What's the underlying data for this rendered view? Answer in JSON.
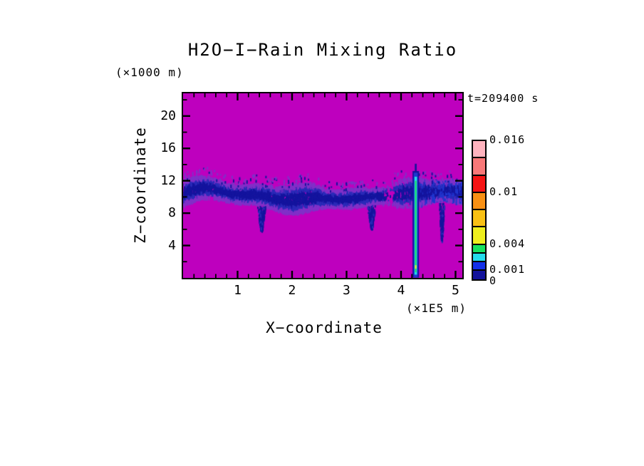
{
  "chart_data": {
    "type": "heatmap",
    "title": "H2O−I−Rain Mixing Ratio",
    "time_annotation": "t=209400 s",
    "x_axis": {
      "label": "X−coordinate",
      "unit_label": "(×1E5 m)",
      "min": 0,
      "max": 5.125,
      "major_ticks": [
        1,
        2,
        3,
        4,
        5
      ],
      "minor_tick_step": 0.2,
      "grid": false
    },
    "z_axis": {
      "label": "Z−coordinate",
      "unit_label": "(×1000 m)",
      "min": 0,
      "max": 22.8,
      "major_ticks": [
        4,
        8,
        12,
        16,
        20
      ],
      "minor_tick_step": 2,
      "grid": false
    },
    "colorbar": {
      "min": 0,
      "max": 0.016,
      "tick_labels": [
        {
          "value": 0.016,
          "text": "0.016"
        },
        {
          "value": 0.01,
          "text": "0.01"
        },
        {
          "value": 0.004,
          "text": "0.004"
        },
        {
          "value": 0.001,
          "text": "0.001"
        },
        {
          "value": 0,
          "text": "0"
        }
      ],
      "segments": [
        {
          "from": 0.014,
          "to": 0.016,
          "color": "#FFB3BE"
        },
        {
          "from": 0.012,
          "to": 0.014,
          "color": "#F87878"
        },
        {
          "from": 0.01,
          "to": 0.012,
          "color": "#F51414"
        },
        {
          "from": 0.008,
          "to": 0.01,
          "color": "#F89014"
        },
        {
          "from": 0.006,
          "to": 0.008,
          "color": "#F8C014"
        },
        {
          "from": 0.004,
          "to": 0.006,
          "color": "#EEEE1E"
        },
        {
          "from": 0.003,
          "to": 0.004,
          "color": "#17E25F"
        },
        {
          "from": 0.002,
          "to": 0.003,
          "color": "#24DCEC"
        },
        {
          "from": 0.001,
          "to": 0.002,
          "color": "#1430E8"
        },
        {
          "from": 0.0,
          "to": 0.001,
          "color": "#12129B"
        }
      ]
    },
    "field": {
      "description": "Magenta background (rain mixing ratio ~0) with a speckled dark-blue rain band between z~8 and z~12.5 (x1000 m) spanning all x, and one narrow intense rain shaft near x~4.27 (x1E5 m) reaching the surface with green/cyan core values in the 0.002-0.006 range",
      "background_color": "#BE00BE",
      "band": {
        "seed": 1337,
        "z_center": 10.15,
        "half_width": 1.35,
        "speckles": 8000,
        "stray_dots": 260,
        "dense_from": 4.35,
        "colors": {
          "fringe": "#8030C8",
          "mid": "#2A2AB8",
          "core": "#14149E",
          "bright": "#2036D0"
        },
        "gaps": [
          {
            "x": 0.5,
            "depth": 0.45,
            "sigma": 0.1
          },
          {
            "x": 2.2,
            "depth": 0.3,
            "sigma": 0.12
          },
          {
            "x": 3.78,
            "depth": 0.9,
            "sigma": 0.13
          },
          {
            "x": 4.12,
            "depth": 0.6,
            "sigma": 0.06
          }
        ],
        "wisps": [
          {
            "x": 1.43,
            "z_bottom": 6.0,
            "spread": 0.16,
            "count": 170
          },
          {
            "x": 3.45,
            "z_bottom": 6.3,
            "spread": 0.16,
            "count": 160
          },
          {
            "x": 4.74,
            "z_bottom": 4.8,
            "spread": 0.11,
            "count": 150
          }
        ]
      },
      "streak": {
        "x": 4.27,
        "layers": [
          {
            "color": "#12129B",
            "half_width": 4.5,
            "z_from": 0.05,
            "z_to": 13.2
          },
          {
            "color": "#2036D0",
            "half_width": 2.8,
            "z_from": 0.05,
            "z_to": 13.0
          },
          {
            "color": "#24DCEC",
            "half_width": 1.8,
            "z_from": 0.4,
            "z_to": 12.5
          },
          {
            "color": "#19DD5F",
            "half_width": 1.0,
            "z_from": 0.7,
            "z_to": 12.0
          }
        ],
        "tip": {
          "color": "#12129B",
          "half_width": 1.3,
          "z_from": 13.2,
          "z_to": 14.1
        },
        "hot_spot": {
          "color": "#E8E832",
          "half_width": 1.2,
          "z": 1.35,
          "height": 5
        }
      }
    }
  }
}
